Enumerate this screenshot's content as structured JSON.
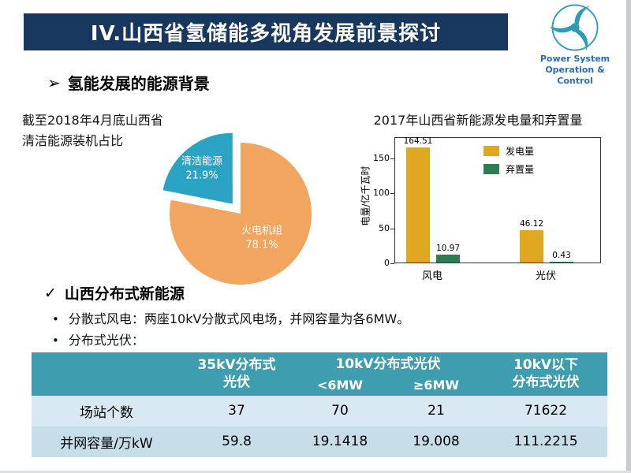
{
  "header": {
    "title": "IV.山西省氢储能多视角发展前景探讨",
    "logo": {
      "line1": "Power System",
      "line2": "Operation & Control"
    }
  },
  "section": {
    "bullet": "➢",
    "title": "氢能发展的能源背景"
  },
  "pie_caption": "截至2018年4月底山西省\n清洁能源装机占比",
  "chart_data": [
    {
      "type": "pie",
      "title": "截至2018年4月底山西省清洁能源装机占比",
      "labels": [
        "火电机组",
        "清洁能源"
      ],
      "values": [
        78.1,
        21.9
      ],
      "value_labels": [
        "78.1%",
        "21.9%"
      ],
      "colors": [
        "#F2A55E",
        "#2BA3C4"
      ],
      "exploded_slice": "清洁能源"
    },
    {
      "type": "bar",
      "title": "2017年山西省新能源发电量和弃置量",
      "categories": [
        "风电",
        "光伏"
      ],
      "series": [
        {
          "name": "发电量",
          "color": "#E0A81E",
          "values": [
            164.51,
            46.12
          ]
        },
        {
          "name": "弃置量",
          "color": "#2F7B52",
          "values": [
            10.97,
            0.43
          ]
        }
      ],
      "ylabel": "电量/亿千瓦时",
      "yticks": [
        0,
        50,
        100,
        150
      ],
      "ylim": [
        0,
        180
      ],
      "grid": false,
      "legend_position": "inside-top"
    }
  ],
  "distributed": {
    "check": "✓",
    "title": "山西分布式新能源",
    "bullet_glyph": "•",
    "bullets": [
      "分散式风电：两座10kV分散式风电场，并网容量为各6MW。",
      "分布式光伏："
    ]
  },
  "table": {
    "headers": {
      "col_35kv": "35kV分布式\n光伏",
      "col_10kv": "10kV分布式光伏",
      "col_10kv_lt": "<6MW",
      "col_10kv_ge": "≥6MW",
      "col_below_10kv": "10kV以下\n分布式光伏"
    },
    "rows": [
      {
        "label": "场站个数",
        "values": [
          "37",
          "70",
          "21",
          "71622"
        ]
      },
      {
        "label": "并网容量/万kW",
        "values": [
          "59.8",
          "19.1418",
          "19.008",
          "111.2215"
        ]
      }
    ]
  },
  "colors": {
    "title_bar": "#17375E",
    "table_header": "#3E9EB0",
    "table_row_light": "#D8E9F3",
    "table_row_dark": "#C6DDEA",
    "logo_text": "#2B6CB0",
    "logo_mark": "#2A9DB5"
  }
}
